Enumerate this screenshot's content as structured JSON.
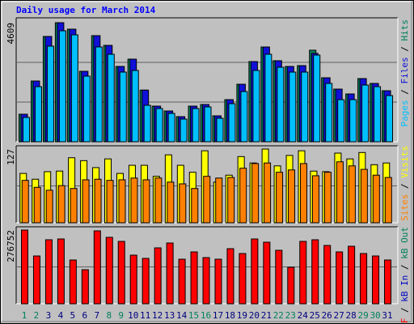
{
  "chart_data": [
    {
      "type": "bar",
      "title": "Daily usage for March 2014",
      "ylim": [
        0,
        4609
      ],
      "yticks": [
        4609
      ],
      "series": [
        {
          "name": "Hits",
          "color": "#00805c",
          "values": [
            1066,
            2351,
            4076,
            4609,
            4358,
            2727,
            4107,
            3731,
            2915,
            3198,
            1999,
            1379,
            1191,
            972,
            1379,
            1442,
            1003,
            1630,
            2226,
            3104,
            3668,
            3136,
            2915,
            2947,
            3543,
            2477,
            2038,
            1850,
            2445,
            2257,
            1975
          ]
        },
        {
          "name": "Files",
          "color": "#1010d8",
          "values": [
            1066,
            2351,
            4076,
            4609,
            4358,
            2727,
            4107,
            3731,
            2915,
            3198,
            1999,
            1379,
            1191,
            972,
            1379,
            1442,
            1003,
            1630,
            2226,
            3104,
            3668,
            3136,
            2915,
            2947,
            3420,
            2477,
            2038,
            1850,
            2445,
            2257,
            1975
          ]
        },
        {
          "name": "Pages",
          "color": "#00bfff",
          "values": [
            941,
            2132,
            3700,
            4295,
            4139,
            2539,
            3669,
            3386,
            2696,
            2759,
            1411,
            1285,
            1097,
            878,
            1285,
            1348,
            909,
            1473,
            1944,
            2759,
            3386,
            2884,
            2696,
            2696,
            3355,
            2257,
            1630,
            1630,
            2195,
            2132,
            1787
          ]
        }
      ],
      "legend_separator": " / "
    },
    {
      "type": "bar",
      "ylim": [
        0,
        127
      ],
      "yticks": [
        127
      ],
      "series": [
        {
          "name": "Visits",
          "color": "#ffff00",
          "values": [
            85,
            75,
            88,
            89,
            112,
            107,
            95,
            110,
            85,
            99,
            99,
            80,
            117,
            99,
            87,
            124,
            70,
            82,
            114,
            103,
            127,
            98,
            116,
            124,
            89,
            88,
            120,
            110,
            121,
            100,
            103
          ]
        },
        {
          "name": "Sites",
          "color": "#ff8000",
          "values": [
            73,
            61,
            56,
            64,
            59,
            74,
            75,
            73,
            74,
            77,
            74,
            77,
            70,
            67,
            59,
            80,
            77,
            78,
            94,
            102,
            103,
            87,
            91,
            102,
            81,
            87,
            105,
            98,
            92,
            82,
            78
          ]
        }
      ],
      "legend_separator": " / "
    },
    {
      "type": "bar",
      "ylim": [
        0,
        276752
      ],
      "yticks": [
        276752
      ],
      "categories": [
        "1",
        "2",
        "3",
        "4",
        "5",
        "6",
        "7",
        "8",
        "9",
        "10",
        "11",
        "12",
        "13",
        "14",
        "15",
        "16",
        "17",
        "18",
        "19",
        "20",
        "21",
        "22",
        "23",
        "24",
        "25",
        "26",
        "27",
        "28",
        "29",
        "30",
        "31"
      ],
      "category_colors": [
        "#00805c",
        "#00805c",
        "#000080",
        "#000080",
        "#000080",
        "#000080",
        "#000080",
        "#00805c",
        "#00805c",
        "#000080",
        "#000080",
        "#000080",
        "#000080",
        "#000080",
        "#00805c",
        "#00805c",
        "#000080",
        "#000080",
        "#000080",
        "#000080",
        "#000080",
        "#00805c",
        "#00805c",
        "#000080",
        "#000080",
        "#000080",
        "#000080",
        "#000080",
        "#00805c",
        "#00805c",
        "#000080"
      ],
      "series": [
        {
          "name": "kB F",
          "color": "#ff0000",
          "values": [
            276752,
            179431,
            240255,
            243296,
            164225,
            127730,
            273711,
            249378,
            234172,
            182472,
            170307,
            209843,
            228090,
            167266,
            194637,
            173348,
            167266,
            206802,
            188554,
            243296,
            231131,
            200719,
            136854,
            234172,
            240255,
            218966,
            194637,
            215925,
            188554,
            179431,
            164225
          ]
        }
      ],
      "legend_only": [
        {
          "name": "kB In",
          "color": "#0000c0"
        },
        {
          "name": "kB Out",
          "color": "#00805c"
        }
      ],
      "legend_separator": " / "
    }
  ]
}
